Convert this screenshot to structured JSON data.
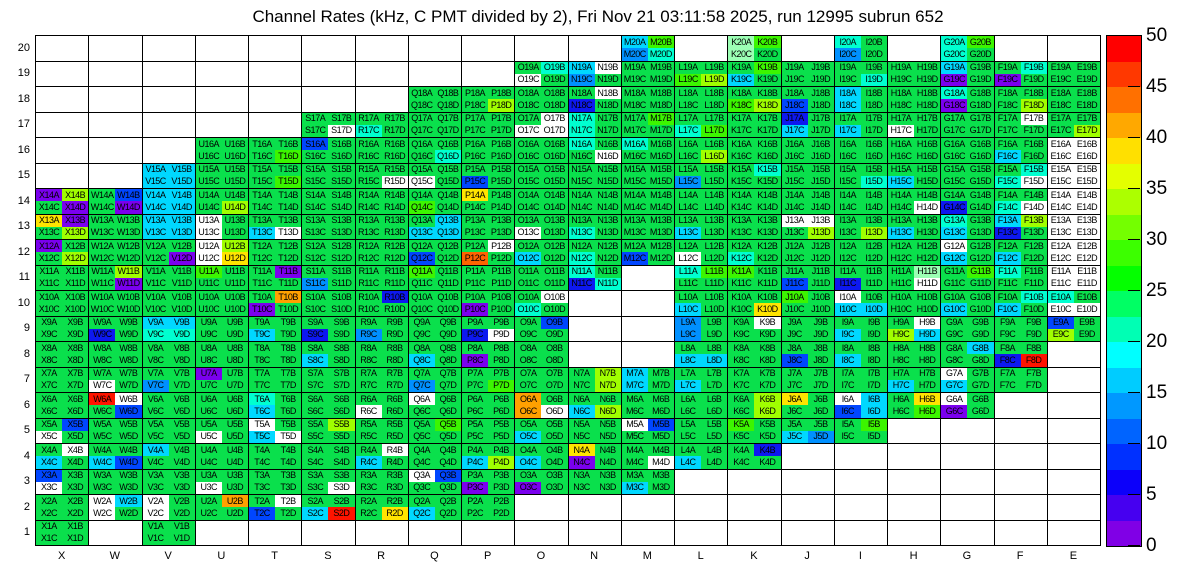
{
  "title": "Channel Rates (kHz, C PMT divided by 2), Fri Nov 21 03:11:58 2025, run 12995 subrun 652",
  "chart_data": {
    "type": "heatmap",
    "title": "Channel Rates (kHz, C PMT divided by 2), Fri Nov 21 03:11:58 2025, run 12995 subrun 652",
    "x_labels": [
      "X",
      "W",
      "V",
      "U",
      "T",
      "S",
      "R",
      "Q",
      "P",
      "O",
      "N",
      "M",
      "L",
      "K",
      "J",
      "I",
      "H",
      "G",
      "F",
      "E"
    ],
    "y_labels": [
      "20",
      "19",
      "18",
      "17",
      "16",
      "15",
      "14",
      "13",
      "12",
      "11",
      "10",
      "9",
      "8",
      "7",
      "6",
      "5",
      "4",
      "3",
      "2",
      "1"
    ],
    "channel_order_in_block": [
      "A",
      "B",
      "C",
      "D"
    ],
    "colorbar": {
      "min": 0,
      "max": 50,
      "tick_step": 5,
      "ticks": [
        50,
        45,
        40,
        35,
        30,
        25,
        20,
        15,
        10,
        5,
        0
      ],
      "band_colors_top_to_bottom": [
        "#ff0000",
        "#ff3800",
        "#ff7000",
        "#ffa800",
        "#ffe000",
        "#e4ff00",
        "#acff00",
        "#74ff00",
        "#3cff00",
        "#04ff00",
        "#00ff64",
        "#00ffb4",
        "#00ffff",
        "#00ccff",
        "#0098ff",
        "#0064ff",
        "#0030ff",
        "#0c00fa",
        "#4600f0",
        "#8000e6"
      ]
    },
    "palette": {
      "w": {
        "hex": "#ffffff",
        "approx_kHz": 0
      },
      "p": {
        "hex": "#7a00ee",
        "approx_kHz": 1
      },
      "B": {
        "hex": "#0d18f0",
        "approx_kHz": 7
      },
      "b": {
        "hex": "#0046ff",
        "approx_kHz": 11
      },
      "L": {
        "hex": "#0090ff",
        "approx_kHz": 16
      },
      "c": {
        "hex": "#00d8ff",
        "approx_kHz": 21
      },
      "t": {
        "hex": "#00ffd0",
        "approx_kHz": 24
      },
      "m": {
        "hex": "#9cffb4",
        "approx_kHz": 25
      },
      "g": {
        "hex": "#0ae04c",
        "approx_kHz": 27
      },
      "G": {
        "hex": "#3cf500",
        "approx_kHz": 31
      },
      "y": {
        "hex": "#a0ff00",
        "approx_kHz": 36
      },
      "Y": {
        "hex": "#ffe400",
        "approx_kHz": 40
      },
      "o": {
        "hex": "#ffa000",
        "approx_kHz": 43
      },
      "O": {
        "hex": "#ff6400",
        "approx_kHz": 46
      },
      "r": {
        "hex": "#ff1400",
        "approx_kHz": 49
      }
    },
    "rows": [
      {
        "row": 20,
        "blocks": {
          "M": "cGLt",
          "K": "mGmg",
          "I": "tgLg",
          "G": "tGtg"
        }
      },
      {
        "row": 19,
        "blocks": {
          "O": "gtwg",
          "N": "cwLg",
          "M": "gggg",
          "L": "ggGy",
          "K": "gGcg",
          "J": "gggg",
          "I": "gggt",
          "H": "gggg",
          "G": "cgpg",
          "F": "gtpg",
          "E": "gggg"
        }
      },
      {
        "row": 18,
        "blocks": {
          "Q": "gggg",
          "P": "gggy",
          "O": "gggg",
          "N": "gwBg",
          "M": "gggg",
          "L": "gggg",
          "K": "ggGy",
          "J": "ggbg",
          "I": "cgcg",
          "H": "gggg",
          "G": "tgpg",
          "F": "gggy",
          "E": "gggg"
        }
      },
      {
        "row": 17,
        "blocks": {
          "S": "gggw",
          "R": "ggtg",
          "Q": "gggg",
          "P": "gggg",
          "O": "gwww",
          "N": "tgtg",
          "M": "gGgg",
          "L": "ggtG",
          "K": "gggg",
          "J": "Bgcg",
          "I": "ggcg",
          "H": "ggwg",
          "G": "gggg",
          "F": "gwgg",
          "E": "gggy"
        }
      },
      {
        "row": 16,
        "blocks": {
          "U": "gggg",
          "T": "gggG",
          "S": "bggg",
          "R": "gggg",
          "Q": "gggt",
          "P": "gggg",
          "O": "gggg",
          "N": "tggw",
          "M": "tggg",
          "L": "gggy",
          "K": "gggg",
          "J": "gggg",
          "I": "gggg",
          "H": "gggg",
          "G": "gggg",
          "F": "ggcg",
          "E": "wwww"
        }
      },
      {
        "row": 15,
        "blocks": {
          "V": "cccc",
          "U": "gggg",
          "T": "gggG",
          "S": "gggg",
          "R": "gggw",
          "Q": "ggwg",
          "P": "ggbg",
          "O": "gggg",
          "N": "gggg",
          "M": "gggg",
          "L": "ggLg",
          "K": "gtgg",
          "J": "gggg",
          "I": "gggt",
          "H": "ggcg",
          "G": "gggg",
          "F": "gttw",
          "E": "wwww"
        }
      },
      {
        "row": 14,
        "blocks": {
          "X": "pygp",
          "W": "gbgp",
          "V": "cccc",
          "U": "gggy",
          "T": "gggg",
          "S": "gggg",
          "R": "gggg",
          "Q": "ggGg",
          "P": "Yggg",
          "O": "gggg",
          "N": "gggg",
          "M": "gggg",
          "L": "gggg",
          "K": "gggg",
          "J": "gggg",
          "I": "gggg",
          "H": "gggw",
          "G": "ggBg",
          "F": "ggtw",
          "E": "wwww"
        }
      },
      {
        "row": 13,
        "blocks": {
          "X": "Ypgy",
          "W": "gggg",
          "V": "cccc",
          "U": "wgwg",
          "T": "ggcw",
          "S": "gggg",
          "R": "gggg",
          "Q": "gccc",
          "P": "gggg",
          "O": "ggwg",
          "N": "ggtg",
          "M": "gggg",
          "L": "ggcg",
          "K": "gggg",
          "J": "wwgy",
          "I": "gggy",
          "H": "ggcg",
          "G": "tgcg",
          "F": "cyBg",
          "E": "wwww"
        }
      },
      {
        "row": 12,
        "blocks": {
          "X": "pggy",
          "W": "gggg",
          "V": "gggp",
          "U": "wywY",
          "T": "gggg",
          "S": "gggg",
          "R": "gggg",
          "Q": "ggbg",
          "P": "gwOg",
          "O": "ggcg",
          "N": "ggtg",
          "M": "ggbg",
          "L": "ggwg",
          "K": "ggtg",
          "J": "gggg",
          "I": "gggg",
          "H": "gggg",
          "G": "wgcg",
          "F": "ggcg",
          "E": "wwww"
        }
      },
      {
        "row": 11,
        "blocks": {
          "X": "gggg",
          "W": "gygp",
          "V": "gggg",
          "U": "Gggg",
          "T": "gpgg",
          "S": "ggLg",
          "R": "gggg",
          "Q": "Gggg",
          "P": "gggg",
          "O": "gggg",
          "N": "tgBt",
          "L": "tGgg",
          "K": "Gggg",
          "J": "ggbg",
          "I": "ggBg",
          "H": "gmgw",
          "G": "gGgg",
          "F": "tggg",
          "E": "wwww"
        }
      },
      {
        "row": 10,
        "blocks": {
          "X": "gggg",
          "W": "gggg",
          "V": "gggg",
          "U": "gggg",
          "T": "gopg",
          "S": "gggg",
          "R": "gBgg",
          "Q": "gggg",
          "P": "ggpg",
          "O": "gwtg",
          "L": "ggcg",
          "K": "gggY",
          "J": "Gggg",
          "I": "wgcc",
          "H": "gggg",
          "G": "ggcg",
          "F": "gtcg",
          "E": "tgww"
        }
      },
      {
        "row": 9,
        "blocks": {
          "X": "gggg",
          "W": "ggBg",
          "V": "cctt",
          "U": "gggg",
          "T": "ggcg",
          "S": "ggBg",
          "R": "ggLg",
          "Q": "gggg",
          "P": "ggBw",
          "O": "gbgg",
          "L": "LgLg",
          "K": "gwgg",
          "J": "gggg",
          "I": "ggcg",
          "H": "gwyc",
          "G": "gggg",
          "F": "gggg",
          "E": "bgyg"
        }
      },
      {
        "row": 8,
        "blocks": {
          "X": "gggg",
          "W": "gggg",
          "V": "gggg",
          "U": "gggg",
          "T": "gggg",
          "S": "ggcg",
          "R": "gggg",
          "Q": "ggcg",
          "P": "ggpg",
          "O": "gggg",
          "L": "ggcc",
          "K": "gggg",
          "J": "ggbg",
          "I": "ggcg",
          "H": "gggg",
          "G": "gcgg",
          "F": "ggBr"
        }
      },
      {
        "row": 7,
        "blocks": {
          "X": "gggg",
          "W": "ggwg",
          "V": "ggLg",
          "U": "pggg",
          "T": "gggg",
          "S": "gggg",
          "R": "gggg",
          "Q": "ggLg",
          "P": "gggG",
          "O": "gggg",
          "N": "gygy",
          "M": "cgcg",
          "L": "ggcg",
          "K": "gggg",
          "J": "gggg",
          "I": "gggg",
          "H": "ggcg",
          "G": "wgcg",
          "F": "gggg"
        }
      },
      {
        "row": 6,
        "blocks": {
          "X": "gggg",
          "W": "rwgb",
          "V": "gggg",
          "U": "gggg",
          "T": "tgcg",
          "S": "gggg",
          "R": "ggwg",
          "Q": "wggg",
          "P": "gggg",
          "O": "ogow",
          "N": "ggcy",
          "M": "gggg",
          "L": "gggg",
          "K": "gygy",
          "J": "Yggg",
          "I": "wcbc",
          "H": "gYgG",
          "G": "wgpg"
        }
      },
      {
        "row": 5,
        "blocks": {
          "X": "gbwg",
          "W": "gggg",
          "V": "gggg",
          "U": "ggwg",
          "T": "wgcw",
          "S": "gygg",
          "R": "gggg",
          "Q": "gGgg",
          "P": "gggg",
          "O": "ggcg",
          "N": "gggg",
          "M": "wbgg",
          "L": "gggg",
          "K": "Gggg",
          "J": "ggcL",
          "I": "gGgg"
        }
      },
      {
        "row": 4,
        "blocks": {
          "X": "gwcg",
          "W": "ggcb",
          "V": "cggg",
          "U": "gggg",
          "T": "gggg",
          "S": "gggg",
          "R": "gwcg",
          "Q": "gggg",
          "P": "ggcy",
          "O": "ggcg",
          "N": "Ygpg",
          "M": "gggw",
          "L": "ggcg",
          "K": "gBgg"
        }
      },
      {
        "row": 3,
        "blocks": {
          "X": "bgwg",
          "W": "gggg",
          "V": "gggg",
          "U": "ggwg",
          "T": "gggg",
          "S": "gggw",
          "R": "gggg",
          "Q": "wbgg",
          "P": "ggpg",
          "O": "ggpg",
          "N": "gggg",
          "M": "ggcg"
        }
      },
      {
        "row": 2,
        "blocks": {
          "X": "gggg",
          "W": "wcwg",
          "V": "wgwg",
          "U": "gogg",
          "T": "gwbg",
          "S": "ggcr",
          "R": "gggY",
          "Q": "ggcg",
          "P": "gggg"
        }
      },
      {
        "row": 1,
        "blocks": {
          "X": "gggg",
          "V": "gggg"
        }
      }
    ]
  }
}
